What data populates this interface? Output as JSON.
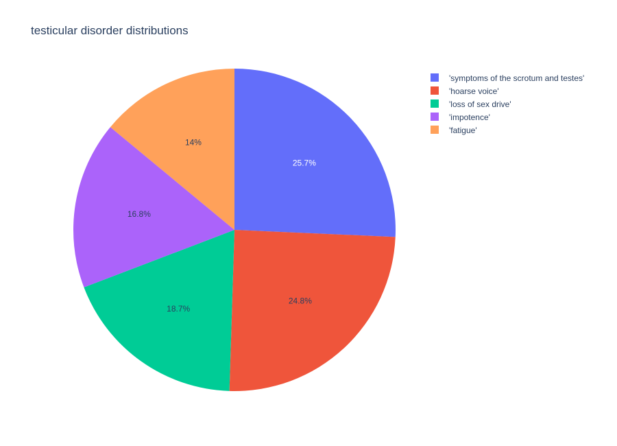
{
  "chart_data": {
    "type": "pie",
    "title": "testicular disorder distributions",
    "sort": "descending",
    "direction": "clockwise",
    "start_angle_deg": 90,
    "legend_position": "top-right",
    "slices": [
      {
        "label": "'symptoms of the scrotum and testes'",
        "percent_text": "25.7%",
        "value": 25.7,
        "color": "#636efa",
        "text_color": "#ffffff"
      },
      {
        "label": "'hoarse voice'",
        "percent_text": "24.8%",
        "value": 24.8,
        "color": "#EF553B",
        "text_color": "#2a3f5f"
      },
      {
        "label": "'loss of sex drive'",
        "percent_text": "18.7%",
        "value": 18.7,
        "color": "#00cc96",
        "text_color": "#2a3f5f"
      },
      {
        "label": "'impotence'",
        "percent_text": "16.8%",
        "value": 16.8,
        "color": "#ab63fa",
        "text_color": "#2a3f5f"
      },
      {
        "label": "'fatigue'",
        "percent_text": "14%",
        "value": 14.0,
        "color": "#FFA15A",
        "text_color": "#2a3f5f"
      }
    ],
    "legend_order": [
      0,
      1,
      2,
      3,
      4
    ]
  }
}
